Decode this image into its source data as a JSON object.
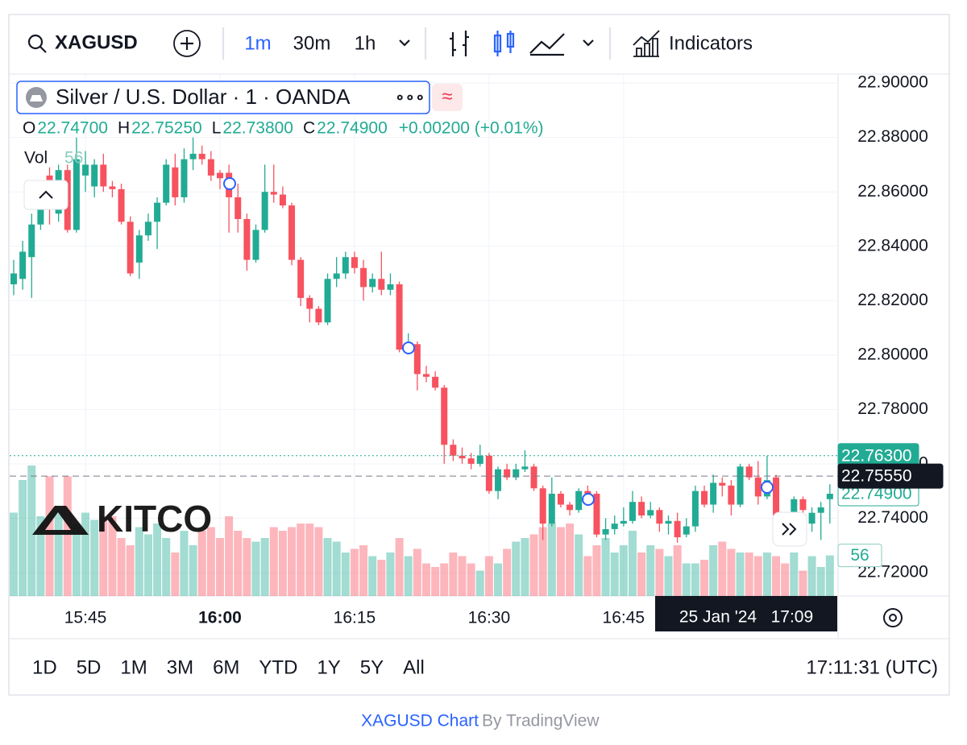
{
  "toolbar": {
    "symbol": "XAGUSD",
    "intervals": [
      "1m",
      "30m",
      "1h"
    ],
    "indicators": "Indicators"
  },
  "legend": {
    "name": "Silver / U.S. Dollar · 1 · OANDA",
    "ohlc": [
      [
        "O",
        "22.74700"
      ],
      [
        "H",
        "22.75250"
      ],
      [
        "L",
        "22.73800"
      ],
      [
        "C",
        "22.74900"
      ]
    ],
    "change": "+0.00200 (+0.01%)",
    "vol_key": "Vol",
    "vol_value": "56"
  },
  "watermark": "KITCO",
  "chart_data": {
    "type": "candlestick",
    "up_color": "#22ab94",
    "down_color": "#f7525f",
    "grid": true,
    "open": [
      22.826,
      22.828,
      22.836,
      22.848,
      22.866,
      22.852,
      22.868,
      22.846,
      22.866,
      22.862,
      22.87,
      22.862,
      22.861,
      22.849,
      22.834,
      22.844,
      22.849,
      22.856,
      22.869,
      22.858,
      22.872,
      22.874,
      22.872,
      22.867,
      22.867,
      22.858,
      22.85,
      22.835,
      22.846,
      22.86,
      22.859,
      22.855,
      22.835,
      22.821,
      22.817,
      22.812,
      22.828,
      22.83,
      22.836,
      22.832,
      22.825,
      22.828,
      22.824,
      22.826,
      22.802,
      22.804,
      22.793,
      22.792,
      22.788,
      22.767,
      22.763,
      22.762,
      22.76,
      22.763,
      22.75,
      22.758,
      22.755,
      22.758,
      22.759,
      22.751,
      22.738,
      22.749,
      22.745,
      22.743,
      22.75,
      22.749,
      22.734,
      22.736,
      22.738,
      22.739,
      22.746,
      22.741,
      22.743,
      22.738,
      22.739,
      22.734,
      22.737,
      22.75,
      22.745,
      22.753,
      22.752,
      22.745,
      22.759,
      22.755,
      22.748,
      22.755,
      22.741,
      22.738,
      22.747,
      22.738,
      22.742,
      22.747
    ],
    "high": [
      22.835,
      22.842,
      22.852,
      22.864,
      22.869,
      22.87,
      22.87,
      22.88,
      22.875,
      22.872,
      22.874,
      22.864,
      22.863,
      22.851,
      22.846,
      22.852,
      22.858,
      22.872,
      22.874,
      22.876,
      22.88,
      22.877,
      22.875,
      22.868,
      22.87,
      22.863,
      22.852,
      22.848,
      22.87,
      22.87,
      22.862,
      22.856,
      22.836,
      22.822,
      22.818,
      22.83,
      22.836,
      22.838,
      22.838,
      22.835,
      22.83,
      22.838,
      22.83,
      22.827,
      22.808,
      22.805,
      22.796,
      22.794,
      22.789,
      22.769,
      22.766,
      22.764,
      22.767,
      22.764,
      22.759,
      22.76,
      22.76,
      22.765,
      22.76,
      22.752,
      22.755,
      22.75,
      22.746,
      22.751,
      22.752,
      22.75,
      22.74,
      22.741,
      22.744,
      22.75,
      22.748,
      22.746,
      22.744,
      22.741,
      22.742,
      22.74,
      22.752,
      22.752,
      22.756,
      22.755,
      22.754,
      22.76,
      22.76,
      22.761,
      22.763,
      22.756,
      22.742,
      22.748,
      22.748,
      22.744,
      22.746,
      22.7525
    ],
    "low": [
      22.822,
      22.824,
      22.821,
      22.846,
      22.848,
      22.849,
      22.845,
      22.845,
      22.86,
      22.858,
      22.86,
      22.858,
      22.848,
      22.829,
      22.828,
      22.842,
      22.839,
      22.855,
      22.855,
      22.856,
      22.868,
      22.87,
      22.864,
      22.861,
      22.845,
      22.845,
      22.831,
      22.834,
      22.845,
      22.856,
      22.854,
      22.833,
      22.818,
      22.812,
      22.811,
      22.811,
      22.825,
      22.828,
      22.83,
      22.82,
      22.823,
      22.822,
      22.822,
      22.801,
      22.801,
      22.787,
      22.79,
      22.787,
      22.76,
      22.761,
      22.76,
      22.758,
      22.759,
      22.749,
      22.747,
      22.754,
      22.754,
      22.757,
      22.75,
      22.732,
      22.737,
      22.744,
      22.741,
      22.742,
      22.747,
      22.733,
      22.732,
      22.734,
      22.737,
      22.738,
      22.74,
      22.74,
      22.735,
      22.734,
      22.731,
      22.733,
      22.735,
      22.744,
      22.742,
      22.748,
      22.741,
      22.744,
      22.754,
      22.745,
      22.747,
      22.739,
      22.735,
      22.736,
      22.74,
      22.735,
      22.732,
      22.738
    ],
    "close": [
      22.83,
      22.838,
      22.848,
      22.858,
      22.862,
      22.868,
      22.846,
      22.872,
      22.87,
      22.87,
      22.862,
      22.861,
      22.849,
      22.83,
      22.844,
      22.849,
      22.856,
      22.87,
      22.858,
      22.872,
      22.874,
      22.872,
      22.866,
      22.865,
      22.858,
      22.85,
      22.835,
      22.846,
      22.86,
      22.859,
      22.855,
      22.835,
      22.821,
      22.817,
      22.812,
      22.828,
      22.83,
      22.836,
      22.832,
      22.825,
      22.828,
      22.824,
      22.826,
      22.802,
      22.804,
      22.793,
      22.792,
      22.788,
      22.767,
      22.763,
      22.762,
      22.76,
      22.763,
      22.75,
      22.758,
      22.755,
      22.758,
      22.759,
      22.751,
      22.738,
      22.749,
      22.745,
      22.743,
      22.75,
      22.749,
      22.734,
      22.736,
      22.738,
      22.739,
      22.746,
      22.741,
      22.743,
      22.738,
      22.739,
      22.733,
      22.737,
      22.75,
      22.745,
      22.753,
      22.752,
      22.745,
      22.759,
      22.755,
      22.748,
      22.754,
      22.741,
      22.738,
      22.747,
      22.743,
      22.742,
      22.744,
      22.749
    ],
    "volume": [
      115,
      160,
      180,
      110,
      165,
      120,
      165,
      100,
      115,
      105,
      110,
      110,
      80,
      70,
      95,
      85,
      100,
      80,
      60,
      90,
      70,
      90,
      95,
      80,
      110,
      90,
      80,
      75,
      80,
      95,
      90,
      95,
      100,
      100,
      95,
      80,
      75,
      60,
      65,
      70,
      55,
      50,
      60,
      80,
      55,
      65,
      45,
      40,
      45,
      60,
      55,
      45,
      35,
      55,
      45,
      65,
      75,
      80,
      85,
      95,
      100,
      95,
      100,
      85,
      55,
      70,
      80,
      60,
      70,
      90,
      60,
      70,
      65,
      55,
      70,
      45,
      45,
      50,
      70,
      75,
      65,
      60,
      60,
      55,
      60,
      55,
      45,
      60,
      35,
      55,
      40,
      56
    ],
    "ylim": [
      22.7114,
      22.903
    ],
    "yticks": [
      {
        "value": 22.72,
        "label": "22.72000"
      },
      {
        "value": 22.74,
        "label": "22.74000"
      },
      {
        "value": 22.76,
        "label": "22.76000"
      },
      {
        "value": 22.78,
        "label": "22.78000"
      },
      {
        "value": 22.8,
        "label": "22.80000"
      },
      {
        "value": 22.82,
        "label": "22.82000"
      },
      {
        "value": 22.84,
        "label": "22.84000"
      },
      {
        "value": 22.86,
        "label": "22.86000"
      },
      {
        "value": 22.88,
        "label": "22.88000"
      },
      {
        "value": 22.9,
        "label": "22.90000"
      }
    ],
    "xticks": [
      {
        "value": 8,
        "label": "15:45"
      },
      {
        "value": 23,
        "label": "16:00",
        "bold": true
      },
      {
        "value": 38,
        "label": "16:15"
      },
      {
        "value": 53,
        "label": "16:30"
      },
      {
        "value": 68,
        "label": "16:45"
      }
    ],
    "price_tags": [
      {
        "value": 22.763,
        "label": "22.76300",
        "style": "high"
      },
      {
        "value": 22.749,
        "label": "22.74900",
        "style": "last"
      },
      {
        "value": 22.7555,
        "label": "22.75550",
        "style": "crosshair"
      }
    ],
    "volume_tag": 56,
    "crosshair_time": "25 Jan '24   17:09"
  },
  "ranges": [
    "1D",
    "5D",
    "1M",
    "3M",
    "6M",
    "YTD",
    "1Y",
    "5Y",
    "All"
  ],
  "clock": "17:11:31 (UTC)",
  "footer": {
    "link": "XAGUSD Chart",
    "by": "By TradingView"
  }
}
